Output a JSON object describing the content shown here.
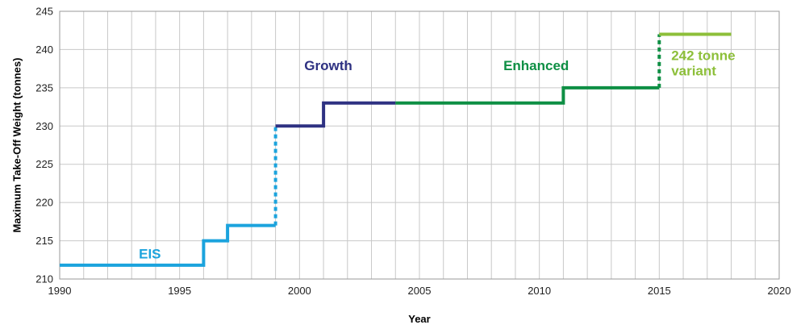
{
  "chart_data": {
    "type": "line",
    "title": "",
    "xlabel": "Year",
    "ylabel": "Maximum Take-Off Weight (tonnes)",
    "xlim": [
      1990,
      2020
    ],
    "ylim": [
      210,
      245
    ],
    "x_ticks": [
      1990,
      1995,
      2000,
      2005,
      2010,
      2015,
      2020
    ],
    "y_ticks": [
      210,
      215,
      220,
      225,
      230,
      235,
      240,
      245
    ],
    "grid": true,
    "colors": {
      "eis": "#1BA3DD",
      "growth": "#2E3182",
      "enhanced": "#0E8F44",
      "variant": "#8DBF3A",
      "grid": "#c8c8c8"
    },
    "series": [
      {
        "key": "eis",
        "color": "#1BA3DD",
        "dashed": false,
        "points": [
          [
            1990,
            211.8
          ],
          [
            1996,
            211.8
          ],
          [
            1996,
            215
          ],
          [
            1997,
            215
          ],
          [
            1997,
            217
          ],
          [
            1999,
            217
          ]
        ]
      },
      {
        "key": "eis",
        "color": "#1BA3DD",
        "dashed": true,
        "points": [
          [
            1999,
            217
          ],
          [
            1999,
            230
          ]
        ]
      },
      {
        "key": "growth",
        "color": "#2E3182",
        "dashed": false,
        "points": [
          [
            1999,
            230
          ],
          [
            2001,
            230
          ],
          [
            2001,
            233
          ],
          [
            2004,
            233
          ]
        ]
      },
      {
        "key": "enhanced",
        "color": "#0E8F44",
        "dashed": false,
        "points": [
          [
            2004,
            233
          ],
          [
            2011,
            233
          ],
          [
            2011,
            235
          ],
          [
            2015,
            235
          ]
        ]
      },
      {
        "key": "enhanced",
        "color": "#0E8F44",
        "dashed": true,
        "points": [
          [
            2015,
            235
          ],
          [
            2015,
            242
          ]
        ]
      },
      {
        "key": "variant",
        "color": "#8DBF3A",
        "dashed": false,
        "points": [
          [
            2015,
            242
          ],
          [
            2018,
            242
          ]
        ]
      }
    ],
    "annotations": [
      {
        "lines": [
          "EIS"
        ],
        "x": 1993.3,
        "y": 212.7,
        "color": "#1BA3DD"
      },
      {
        "lines": [
          "Growth"
        ],
        "x": 2000.2,
        "y": 237.3,
        "color": "#2E3182"
      },
      {
        "lines": [
          "Enhanced"
        ],
        "x": 2008.5,
        "y": 237.3,
        "color": "#0E8F44"
      },
      {
        "lines": [
          "242 tonne",
          "variant"
        ],
        "x": 2015.5,
        "y": 238.6,
        "color": "#8DBF3A"
      }
    ]
  }
}
